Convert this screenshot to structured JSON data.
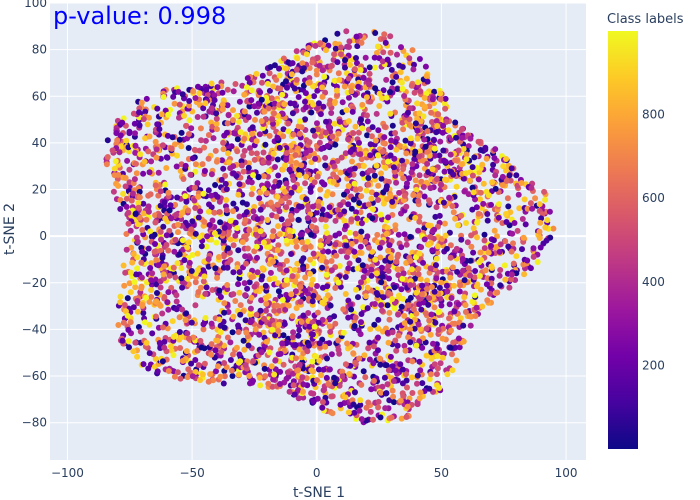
{
  "chart_data": {
    "type": "scatter",
    "title": "",
    "annotation": "p-value: 0.998",
    "annotation_color": "#0000ff",
    "xlabel": "t-SNE 1",
    "ylabel": "t-SNE 2",
    "xlim": [
      -107,
      108
    ],
    "ylim": [
      -96,
      100
    ],
    "x_ticks": [
      -100,
      -50,
      0,
      50,
      100
    ],
    "x_tick_labels": [
      "−100",
      "−50",
      "0",
      "50",
      "100"
    ],
    "y_ticks": [
      -80,
      -60,
      -40,
      -20,
      0,
      20,
      40,
      60,
      80,
      100
    ],
    "y_tick_labels": [
      "−80",
      "−60",
      "−40",
      "−20",
      "0",
      "20",
      "40",
      "60",
      "80",
      "100"
    ],
    "grid": true,
    "background_color": "#e5ecf6",
    "grid_color": "#ffffff",
    "colorbar": {
      "title": "Class labels",
      "colorscale": "plasma",
      "range": [
        1,
        999
      ],
      "ticks": [
        200,
        400,
        600,
        800
      ],
      "tick_labels": [
        "200",
        "400",
        "600",
        "800"
      ],
      "colors": [
        "#0d0887",
        "#46039f",
        "#7201a8",
        "#9c179e",
        "#bd3786",
        "#d8576b",
        "#ed7953",
        "#fb9f3a",
        "#fdca26",
        "#f0f921"
      ]
    },
    "point_cloud": {
      "count": 4200,
      "center": [
        0,
        3
      ],
      "approx_extent": {
        "x": [
          -96,
          95
        ],
        "y": [
          -83,
          92
        ]
      },
      "value_range": [
        1,
        999
      ]
    }
  }
}
